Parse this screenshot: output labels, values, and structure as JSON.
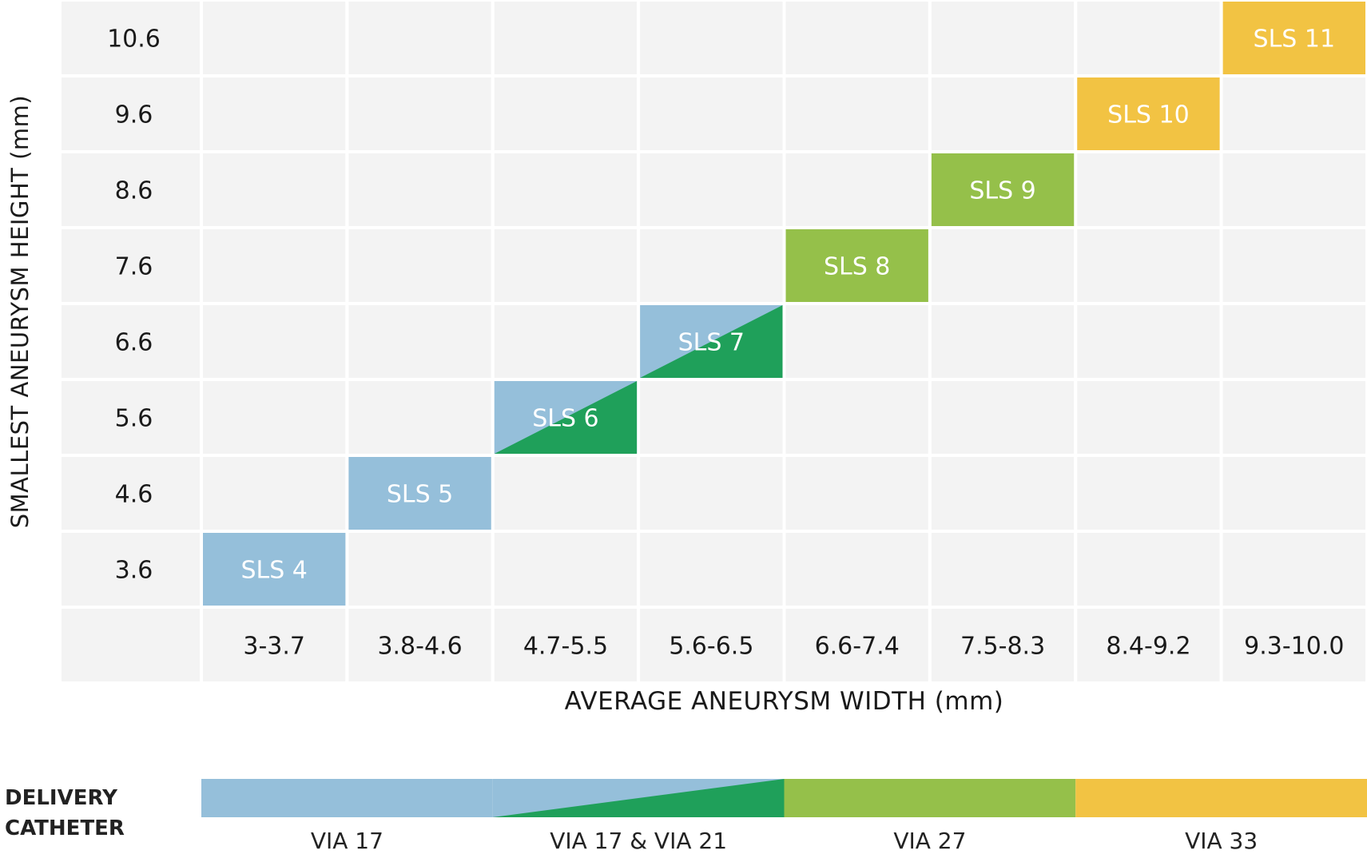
{
  "chart_data": {
    "type": "table",
    "ylabel": "SMALLEST ANEURYSM HEIGHT (mm)",
    "xlabel": "AVERAGE ANEURYSM WIDTH (mm)",
    "row_labels": [
      "10.6",
      "9.6",
      "8.6",
      "7.6",
      "6.6",
      "5.6",
      "4.6",
      "3.6"
    ],
    "column_labels": [
      "3-3.7",
      "3.8-4.6",
      "4.7-5.5",
      "5.6-6.5",
      "6.6-7.4",
      "7.5-8.3",
      "8.4-9.2",
      "9.3-10.0"
    ],
    "cells": [
      {
        "label": "SLS 4",
        "height": "3.6",
        "width": "3-3.7",
        "fill": "via17"
      },
      {
        "label": "SLS 5",
        "height": "4.6",
        "width": "3.8-4.6",
        "fill": "via17"
      },
      {
        "label": "SLS 6",
        "height": "5.6",
        "width": "4.7-5.5",
        "fill": "via17-21"
      },
      {
        "label": "SLS 7",
        "height": "6.6",
        "width": "5.6-6.5",
        "fill": "via17-21"
      },
      {
        "label": "SLS 8",
        "height": "7.6",
        "width": "6.6-7.4",
        "fill": "via27"
      },
      {
        "label": "SLS 9",
        "height": "8.6",
        "width": "7.5-8.3",
        "fill": "via27"
      },
      {
        "label": "SLS 10",
        "height": "9.6",
        "width": "8.4-9.2",
        "fill": "via33"
      },
      {
        "label": "SLS 11",
        "height": "10.6",
        "width": "9.3-10.0",
        "fill": "via33"
      }
    ],
    "colors": {
      "via17": "#95bfda",
      "via21": "#1fa05a",
      "via27": "#95c04a",
      "via33": "#f2c343",
      "cell_bg": "#f3f3f3",
      "cell_line": "#ffffff"
    }
  },
  "delivery_catheter": {
    "title_line1": "DELIVERY",
    "title_line2": "CATHETER",
    "segments": [
      {
        "label": "VIA 17",
        "start_column": 0,
        "end_column": 2,
        "fill": "via17"
      },
      {
        "label": "VIA 17 & VIA 21",
        "start_column": 2,
        "end_column": 4,
        "fill": "via17-21"
      },
      {
        "label": "VIA 27",
        "start_column": 4,
        "end_column": 6,
        "fill": "via27"
      },
      {
        "label": "VIA 33",
        "start_column": 6,
        "end_column": 8,
        "fill": "via33"
      }
    ]
  }
}
